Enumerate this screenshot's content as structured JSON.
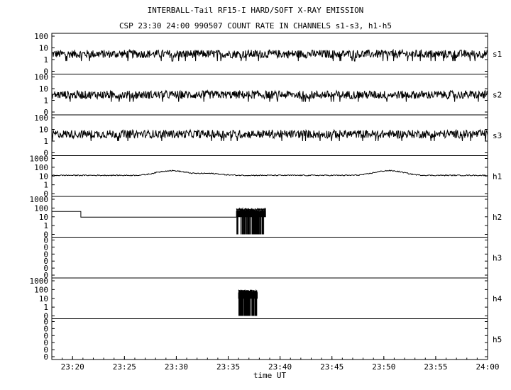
{
  "chart_data": {
    "type": "line",
    "title": "INTERBALL-Tail RF15-I HARD/SOFT X-RAY EMISSION",
    "subtitle": "CSP 23:30 24:00 990507  COUNT RATE IN CHANNELS s1-s3, h1-h5",
    "xlabel": "time UT",
    "x_ticks": [
      "23:20",
      "23:25",
      "23:30",
      "23:35",
      "23:40",
      "23:45",
      "23:50",
      "23:55",
      "24:00"
    ],
    "x_range_minutes": [
      1398,
      1440
    ],
    "y_scale": "log",
    "grid": false,
    "panels": [
      {
        "name": "s1",
        "yticks": [
          "100",
          "10",
          "1",
          "0"
        ],
        "ylim": [
          0.1,
          100
        ],
        "baseline": 3,
        "behavior": "noisy"
      },
      {
        "name": "s2",
        "yticks": [
          "100",
          "10",
          "1",
          "0"
        ],
        "ylim": [
          0.1,
          100
        ],
        "baseline": 3,
        "behavior": "noisy"
      },
      {
        "name": "s3",
        "yticks": [
          "100",
          "10",
          "1",
          "0"
        ],
        "ylim": [
          0.1,
          100
        ],
        "baseline": 4,
        "behavior": "noisy"
      },
      {
        "name": "h1",
        "yticks": [
          "1000",
          "100",
          "10",
          "1",
          "0"
        ],
        "ylim": [
          0.1,
          1000
        ],
        "baseline": 12,
        "behavior": "smooth",
        "bumps": [
          {
            "t": 1409.5,
            "v": 60
          },
          {
            "t": 1413,
            "v": 25
          },
          {
            "t": 1430.5,
            "v": 60
          }
        ]
      },
      {
        "name": "h2",
        "yticks": [
          "1000",
          "100",
          "10",
          "1",
          "0"
        ],
        "ylim": [
          0.1,
          1000
        ],
        "behavior": "steps",
        "steps": [
          {
            "t0": 1398,
            "t1": 1400.8,
            "v": 40
          },
          {
            "t0": 1400.8,
            "t1": 1415.8,
            "v": 9
          }
        ],
        "burst": {
          "t0": 1415.8,
          "t1": 1418.6,
          "vmax": 90,
          "vmin": 0.1
        }
      },
      {
        "name": "h3",
        "yticks": [
          "0",
          "0",
          "0",
          "0",
          "0",
          "0"
        ],
        "ylim": [
          0,
          1
        ],
        "behavior": "empty"
      },
      {
        "name": "h4",
        "yticks": [
          "1000",
          "100",
          "10",
          "1",
          "0"
        ],
        "ylim": [
          0.1,
          1000
        ],
        "behavior": "burst",
        "burst": {
          "t0": 1416,
          "t1": 1417.8,
          "vmax": 90,
          "vmin": 0.1
        }
      },
      {
        "name": "h5",
        "yticks": [
          "0",
          "0",
          "0",
          "0",
          "0",
          "0"
        ],
        "ylim": [
          0,
          1
        ],
        "behavior": "empty"
      }
    ]
  }
}
